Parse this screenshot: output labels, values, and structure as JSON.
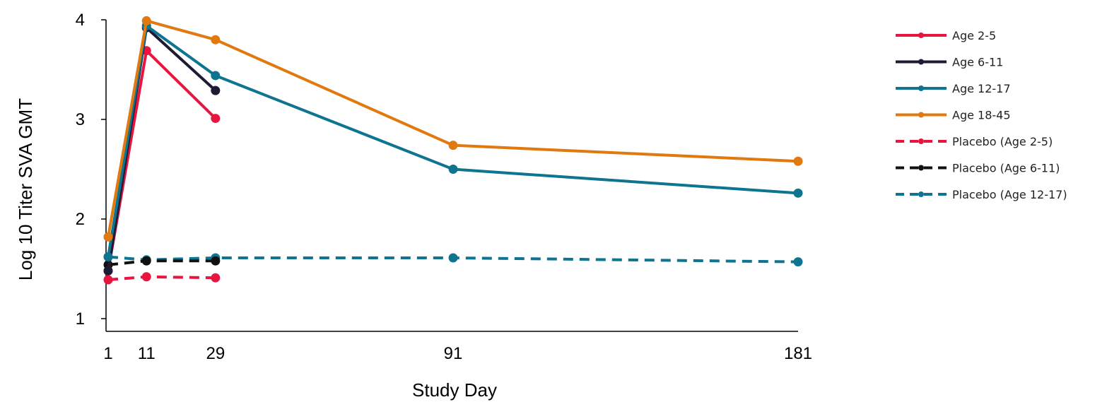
{
  "chart_data": {
    "type": "line",
    "xlabel": "Study Day",
    "ylabel": "Log 10 Titer SVA GMT",
    "x_ticks": [
      1,
      11,
      29,
      91,
      181
    ],
    "y_ticks": [
      1,
      2,
      3,
      4
    ],
    "ylim": [
      1,
      4
    ],
    "xlim": [
      1,
      181
    ],
    "x_scale": "linear",
    "grid": false,
    "legend_position": "right",
    "series": [
      {
        "name": "Age 2-5",
        "color": "#E8153F",
        "dashed": false,
        "x": [
          1,
          11,
          29
        ],
        "values": [
          1.48,
          3.69,
          3.01
        ]
      },
      {
        "name": "Age 6-11",
        "color": "#1E1B34",
        "dashed": false,
        "x": [
          1,
          11,
          29
        ],
        "values": [
          1.48,
          3.92,
          3.29
        ]
      },
      {
        "name": "Age 12-17",
        "color": "#0E7490",
        "dashed": false,
        "x": [
          1,
          11,
          29,
          91,
          181
        ],
        "values": [
          1.62,
          3.94,
          3.44,
          2.5,
          2.26
        ]
      },
      {
        "name": "Age 18-45",
        "color": "#E0790F",
        "dashed": false,
        "x": [
          1,
          11,
          29,
          91,
          181
        ],
        "values": [
          1.82,
          3.99,
          3.8,
          2.74,
          2.58
        ]
      },
      {
        "name": "Placebo (Age 2-5)",
        "color": "#E8153F",
        "dashed": true,
        "x": [
          1,
          11,
          29
        ],
        "values": [
          1.39,
          1.42,
          1.41
        ]
      },
      {
        "name": "Placebo (Age 6-11)",
        "color": "#111111",
        "dashed": true,
        "x": [
          1,
          11,
          29
        ],
        "values": [
          1.54,
          1.58,
          1.58
        ]
      },
      {
        "name": "Placebo (Age 12-17)",
        "color": "#0E7490",
        "dashed": true,
        "x": [
          1,
          11,
          29,
          91,
          181
        ],
        "values": [
          1.62,
          1.59,
          1.61,
          1.61,
          1.57
        ]
      }
    ]
  }
}
